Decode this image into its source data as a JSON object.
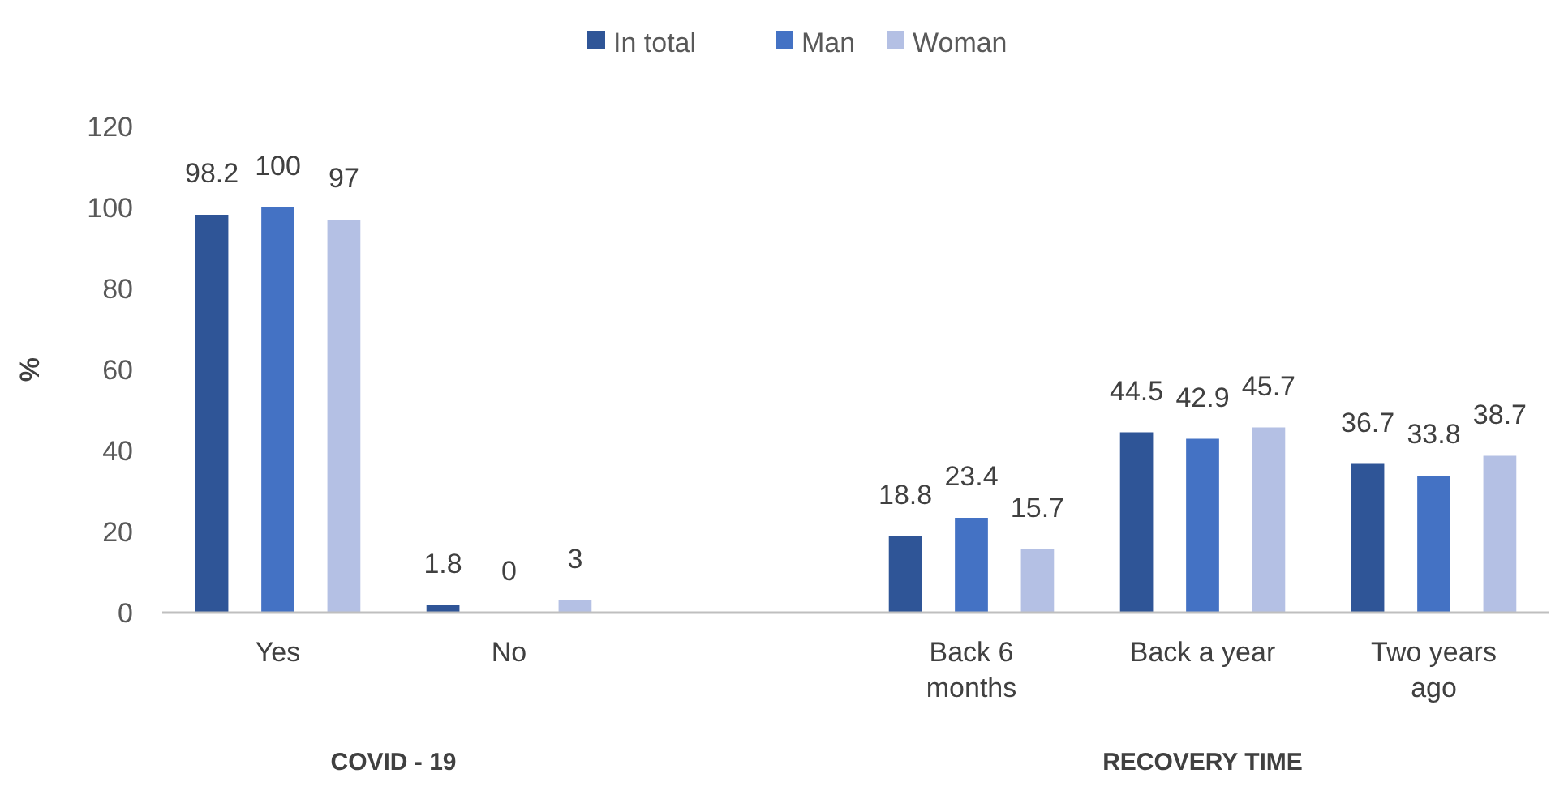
{
  "chart_data": {
    "type": "bar",
    "ylabel": "%",
    "categories": [
      "Yes",
      "No",
      null,
      "Back 6 months",
      "Back a year",
      "Two years ago"
    ],
    "series": [
      {
        "name": "In total",
        "color": "#2f5597",
        "values": [
          98.2,
          1.8,
          null,
          18.8,
          44.5,
          36.7
        ]
      },
      {
        "name": "Man",
        "color": "#4472c4",
        "values": [
          100,
          0,
          null,
          23.4,
          42.9,
          33.8
        ]
      },
      {
        "name": "Woman",
        "color": "#b4c0e4",
        "values": [
          97,
          3,
          null,
          15.7,
          45.7,
          38.7
        ]
      }
    ],
    "ylim": [
      0,
      120
    ],
    "yticks": [
      0,
      20,
      40,
      60,
      80,
      100,
      120
    ],
    "grid": false,
    "legend": "top",
    "data_labels": true,
    "annotations": [
      "COVID - 19",
      "RECOVERY TIME"
    ]
  }
}
